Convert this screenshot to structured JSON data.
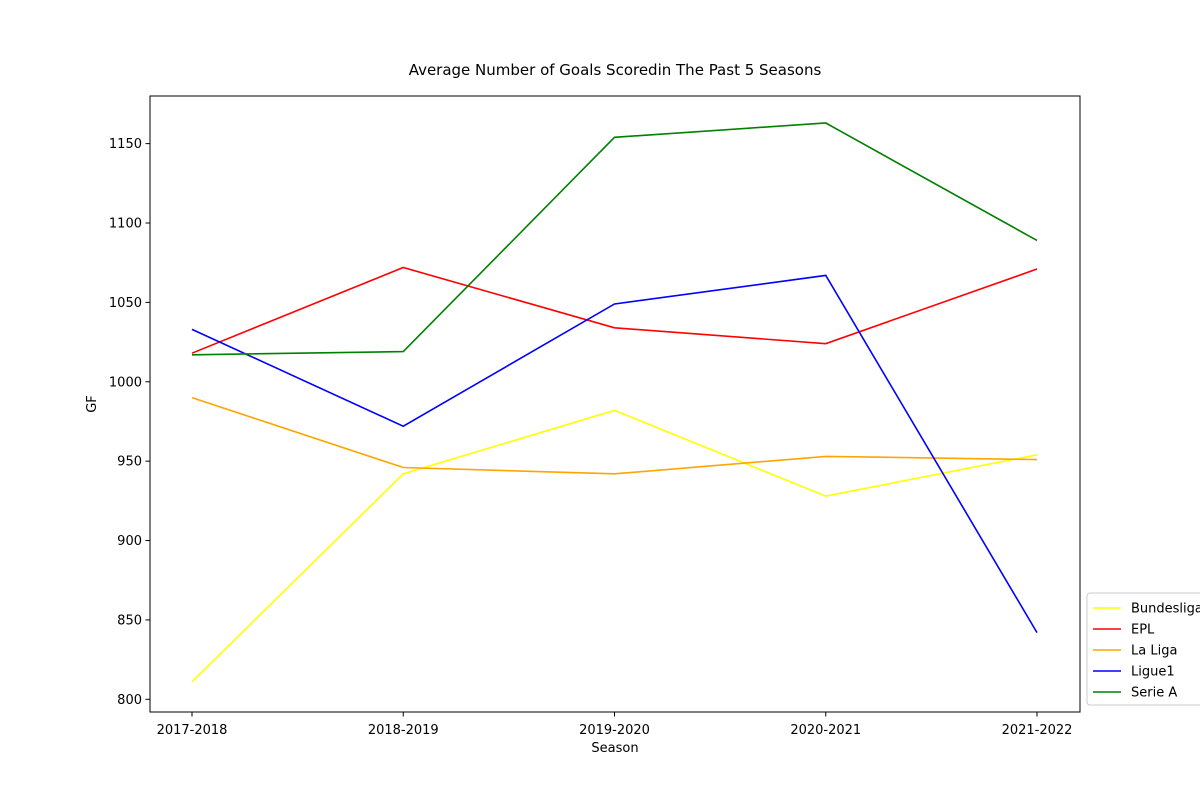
{
  "chart_data": {
    "type": "line",
    "title": "Average Number of Goals Scoredin The Past 5 Seasons",
    "xlabel": "Season",
    "ylabel": "GF",
    "categories": [
      "2017-2018",
      "2018-2019",
      "2019-2020",
      "2020-2021",
      "2021-2022"
    ],
    "ylim": [
      792,
      1180
    ],
    "yticks": [
      800,
      850,
      900,
      950,
      1000,
      1050,
      1100,
      1150
    ],
    "grid": false,
    "legend_position": "lower-right outside",
    "series": [
      {
        "name": "Bundesliga",
        "color": "#ffff00",
        "values": [
          811,
          942,
          982,
          928,
          954
        ]
      },
      {
        "name": "EPL",
        "color": "#ff0000",
        "values": [
          1018,
          1072,
          1034,
          1024,
          1071
        ]
      },
      {
        "name": "La Liga",
        "color": "#ffa500",
        "values": [
          990,
          946,
          942,
          953,
          951
        ]
      },
      {
        "name": "Ligue1",
        "color": "#0000ff",
        "values": [
          1033,
          972,
          1049,
          1067,
          842
        ]
      },
      {
        "name": "Serie A",
        "color": "#008000",
        "values": [
          1017,
          1019,
          1154,
          1163,
          1089
        ]
      }
    ]
  }
}
